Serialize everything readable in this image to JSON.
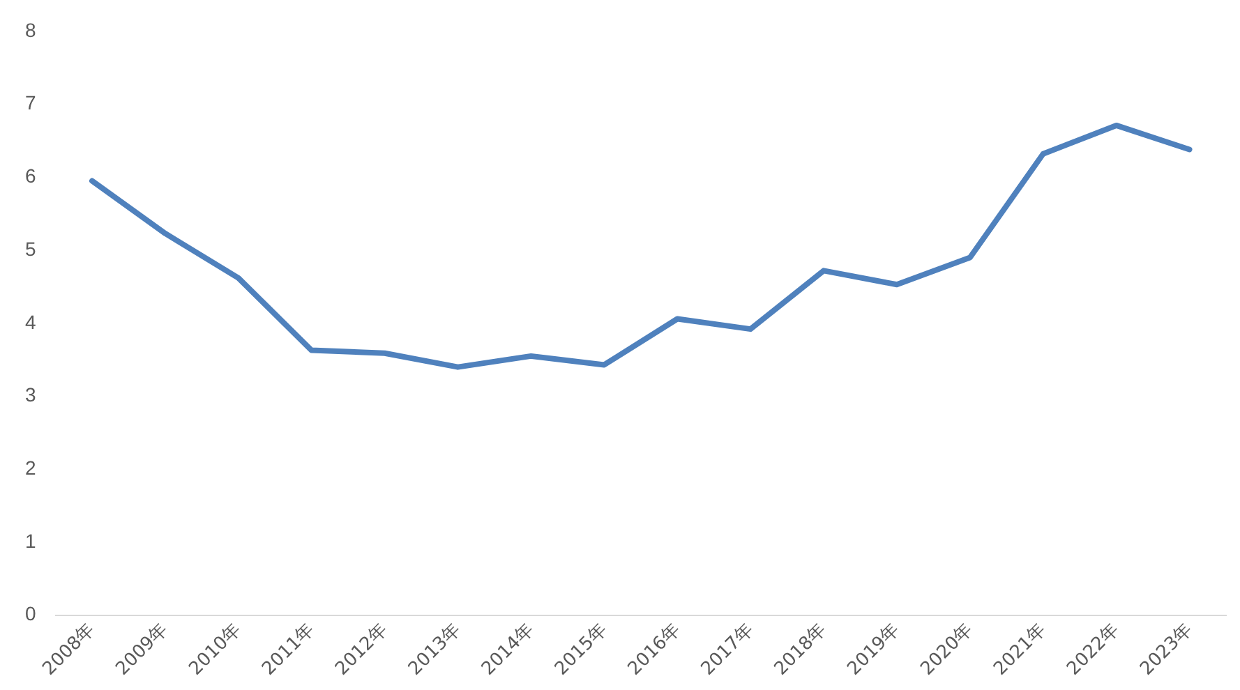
{
  "chart_data": {
    "type": "line",
    "categories": [
      "2008年",
      "2009年",
      "2010年",
      "2011年",
      "2012年",
      "2013年",
      "2014年",
      "2015年",
      "2016年",
      "2017年",
      "2018年",
      "2019年",
      "2020年",
      "2021年",
      "2022年",
      "2023年"
    ],
    "series": [
      {
        "color": "#4f81bd",
        "values": [
          5.95,
          5.23,
          4.62,
          3.63,
          3.59,
          3.4,
          3.55,
          3.43,
          4.06,
          3.92,
          4.72,
          4.53,
          4.9,
          6.32,
          6.71,
          6.38
        ]
      }
    ],
    "ylim": [
      0,
      8
    ],
    "yticks": [
      0,
      1,
      2,
      3,
      4,
      5,
      6,
      7,
      8
    ],
    "grid": false,
    "legend": false,
    "marker": "none",
    "line_style": "solid"
  }
}
